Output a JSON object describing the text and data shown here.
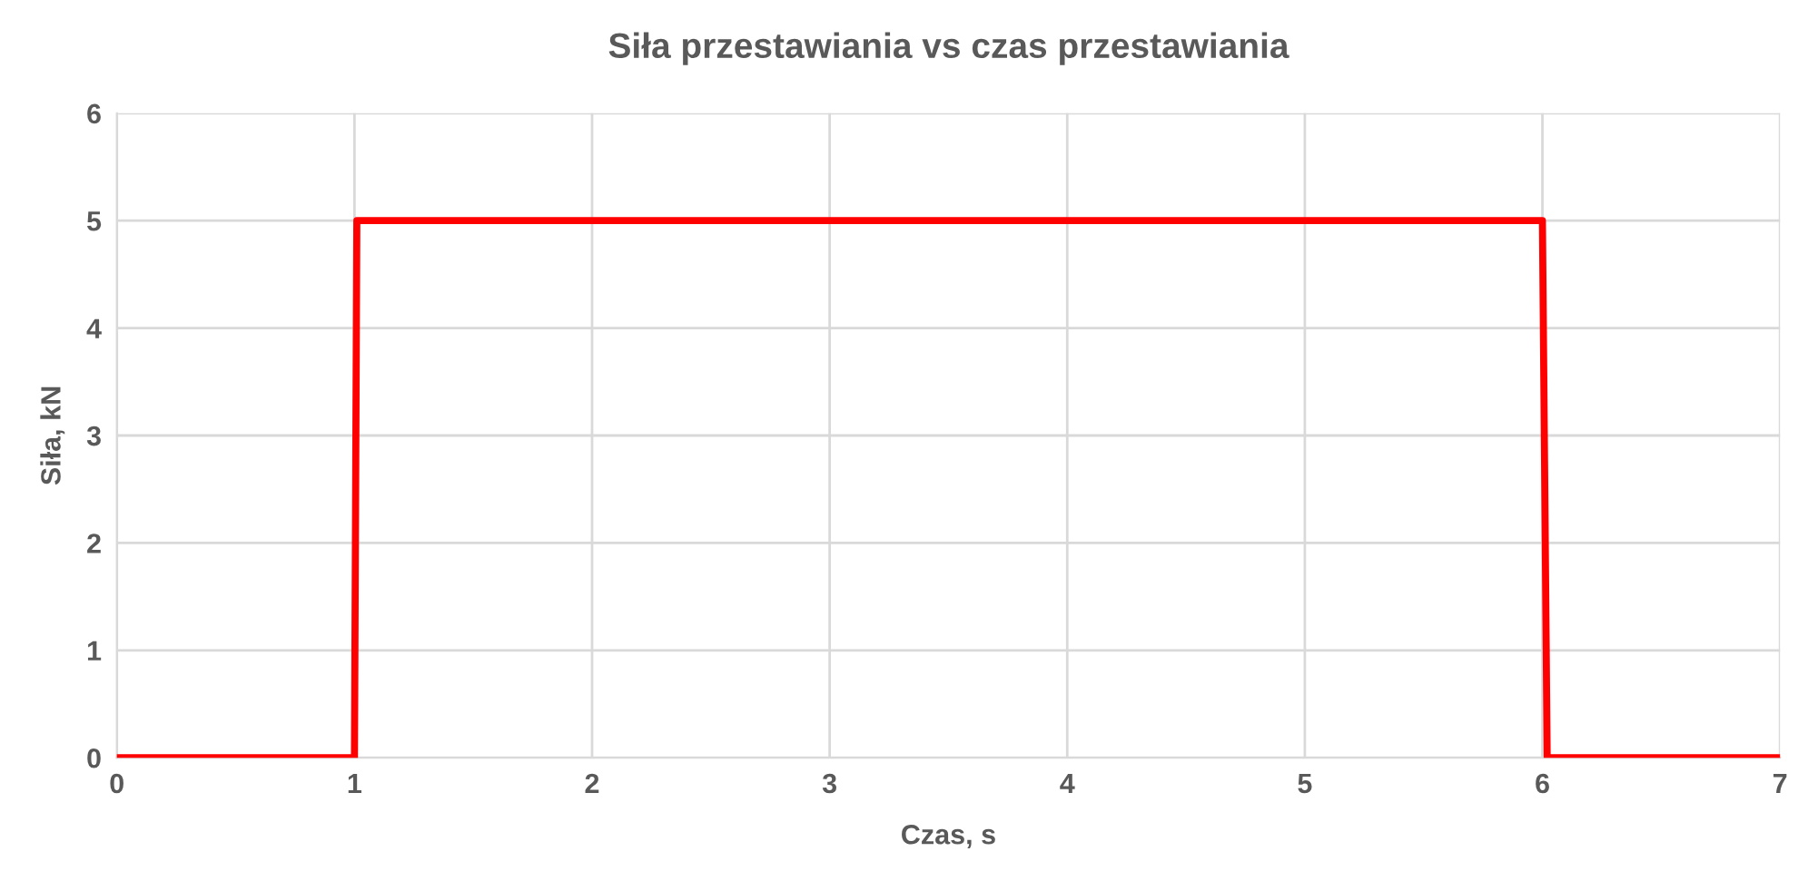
{
  "chart_data": {
    "type": "line",
    "title": "Siła przestawiania vs czas przestawiania",
    "xlabel": "Czas, s",
    "ylabel": "Siła, kN",
    "x": [
      0,
      1,
      1.01,
      6,
      6.02,
      7
    ],
    "series": [
      {
        "color": "#ff0000",
        "values": [
          0,
          0,
          5,
          5,
          0,
          0
        ]
      }
    ],
    "xlim": [
      0,
      7
    ],
    "xticks": [
      0,
      1,
      2,
      3,
      4,
      5,
      6,
      7
    ],
    "ylim": [
      0,
      6
    ],
    "yticks": [
      0,
      1,
      2,
      3,
      4,
      5,
      6
    ],
    "grid": true,
    "marker": "none",
    "line_style": "solid"
  }
}
